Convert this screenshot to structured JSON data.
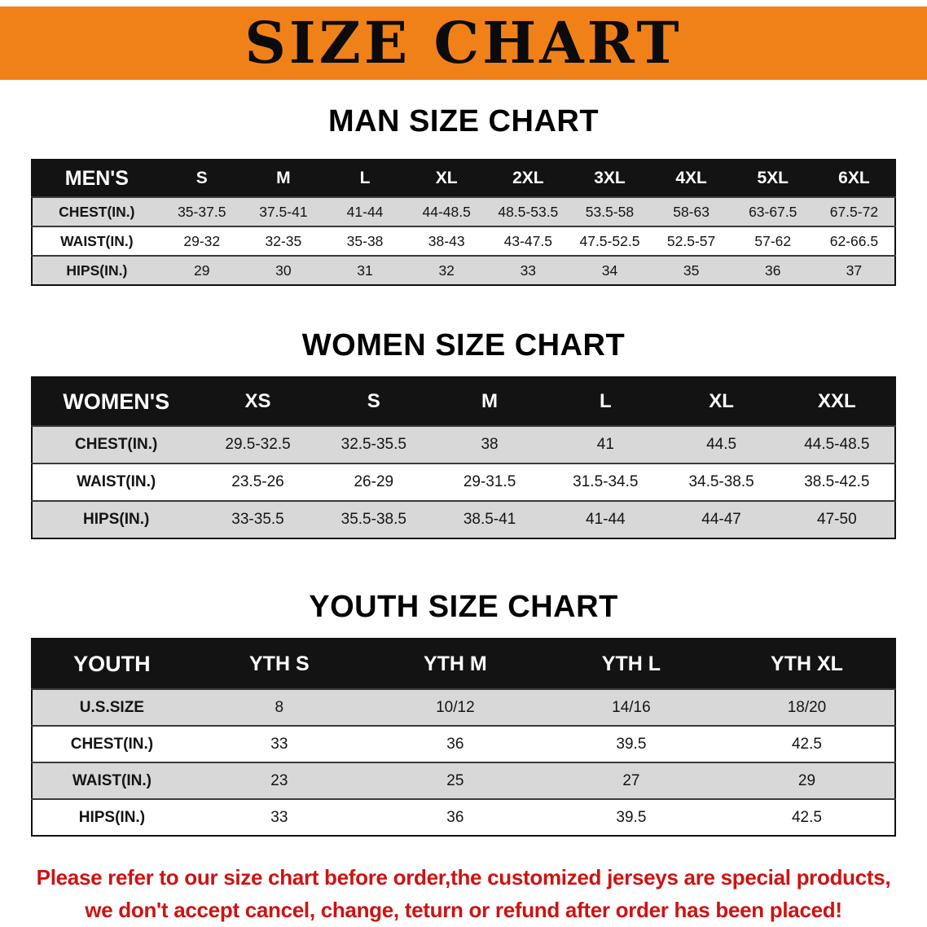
{
  "banner": {
    "title": "SIZE CHART"
  },
  "colors": {
    "banner_bg": "#f08119",
    "header_bg": "#131313",
    "row_alt_bg": "#d8d8d8",
    "note_color": "#cf1212"
  },
  "sections": [
    {
      "heading": "MAN SIZE CHART",
      "header": [
        "MEN'S",
        "S",
        "M",
        "L",
        "XL",
        "2XL",
        "3XL",
        "4XL",
        "5XL",
        "6XL"
      ],
      "rows": [
        [
          "CHEST(IN.)",
          "35-37.5",
          "37.5-41",
          "41-44",
          "44-48.5",
          "48.5-53.5",
          "53.5-58",
          "58-63",
          "63-67.5",
          "67.5-72"
        ],
        [
          "WAIST(IN.)",
          "29-32",
          "32-35",
          "35-38",
          "38-43",
          "43-47.5",
          "47.5-52.5",
          "52.5-57",
          "57-62",
          "62-66.5"
        ],
        [
          "HIPS(IN.)",
          "29",
          "30",
          "31",
          "32",
          "33",
          "34",
          "35",
          "36",
          "37"
        ]
      ]
    },
    {
      "heading": "WOMEN SIZE CHART",
      "header": [
        "WOMEN'S",
        "XS",
        "S",
        "M",
        "L",
        "XL",
        "XXL"
      ],
      "rows": [
        [
          "CHEST(IN.)",
          "29.5-32.5",
          "32.5-35.5",
          "38",
          "41",
          "44.5",
          "44.5-48.5"
        ],
        [
          "WAIST(IN.)",
          "23.5-26",
          "26-29",
          "29-31.5",
          "31.5-34.5",
          "34.5-38.5",
          "38.5-42.5"
        ],
        [
          "HIPS(IN.)",
          "33-35.5",
          "35.5-38.5",
          "38.5-41",
          "41-44",
          "44-47",
          "47-50"
        ]
      ]
    },
    {
      "heading": "YOUTH SIZE CHART",
      "header": [
        "YOUTH",
        "YTH S",
        "YTH M",
        "YTH L",
        "YTH XL"
      ],
      "rows": [
        [
          "U.S.SIZE",
          "8",
          "10/12",
          "14/16",
          "18/20"
        ],
        [
          "CHEST(IN.)",
          "33",
          "36",
          "39.5",
          "42.5"
        ],
        [
          "WAIST(IN.)",
          "23",
          "25",
          "27",
          "29"
        ],
        [
          "HIPS(IN.)",
          "33",
          "36",
          "39.5",
          "42.5"
        ]
      ]
    }
  ],
  "note": {
    "line1": "Please refer to our size chart before order,the customized jerseys are special products,",
    "line2": "we don't accept cancel, change, teturn or refund after order has been placed!"
  }
}
